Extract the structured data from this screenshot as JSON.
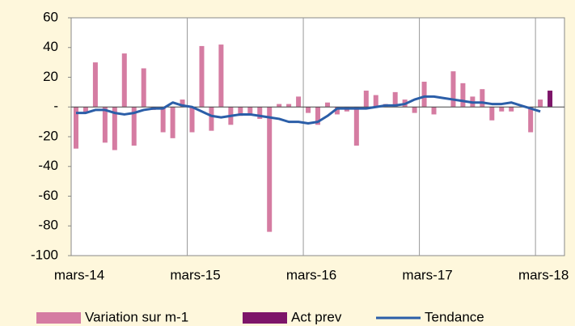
{
  "chart_data": {
    "type": "bar-line",
    "categories": [
      "mars-14",
      null,
      null,
      null,
      null,
      null,
      null,
      null,
      null,
      null,
      null,
      null,
      "mars-15",
      null,
      null,
      null,
      null,
      null,
      null,
      null,
      null,
      null,
      null,
      null,
      "mars-16",
      null,
      null,
      null,
      null,
      null,
      null,
      null,
      null,
      null,
      null,
      null,
      "mars-17",
      null,
      null,
      null,
      null,
      null,
      null,
      null,
      null,
      null,
      null,
      null,
      "mars-18",
      null,
      null
    ],
    "series": [
      {
        "name": "Variation sur m-1",
        "type": "bar",
        "color": "#d57ca2",
        "values": [
          -28,
          -4,
          30,
          -24,
          -29,
          36,
          -26,
          26,
          -2,
          -17,
          -21,
          5,
          -17,
          41,
          -16,
          42,
          -12,
          -6,
          -5,
          -8,
          -84,
          2,
          2,
          7,
          -4,
          -12,
          3,
          -5,
          -3,
          -26,
          11,
          8,
          2,
          10,
          5,
          -4,
          17,
          -5,
          0,
          24,
          16,
          7,
          12,
          -9,
          -3,
          -3,
          0,
          -17,
          5,
          null,
          null
        ]
      },
      {
        "name": "Act prev",
        "type": "bar",
        "color": "#7d1569",
        "values": [
          null,
          null,
          null,
          null,
          null,
          null,
          null,
          null,
          null,
          null,
          null,
          null,
          null,
          null,
          null,
          null,
          null,
          null,
          null,
          null,
          null,
          null,
          null,
          null,
          null,
          null,
          null,
          null,
          null,
          null,
          null,
          null,
          null,
          null,
          null,
          null,
          null,
          null,
          null,
          null,
          null,
          null,
          null,
          null,
          null,
          null,
          null,
          null,
          null,
          11,
          null
        ]
      },
      {
        "name": "Tendance",
        "type": "line",
        "color": "#2b5ea8",
        "values": [
          -4,
          -4,
          -2,
          -2,
          -4,
          -5,
          -4,
          -2,
          -1,
          -1,
          3,
          1,
          0,
          -3,
          -6,
          -7,
          -6,
          -5,
          -5,
          -6,
          -7,
          -8,
          -10,
          -10,
          -11,
          -10,
          -6,
          -1,
          -1,
          -1,
          -1,
          0,
          1,
          1,
          2,
          5,
          7,
          7,
          6,
          5,
          4,
          3,
          3,
          2,
          2,
          3,
          1,
          -1,
          -3,
          null,
          null
        ]
      }
    ],
    "ylim": [
      -100,
      60
    ],
    "yticks": [
      -100,
      -80,
      -60,
      -40,
      -20,
      {
        "value": 0,
        "label": "-"
      },
      20,
      40,
      60
    ],
    "grid": "x",
    "legend": "bottom"
  }
}
